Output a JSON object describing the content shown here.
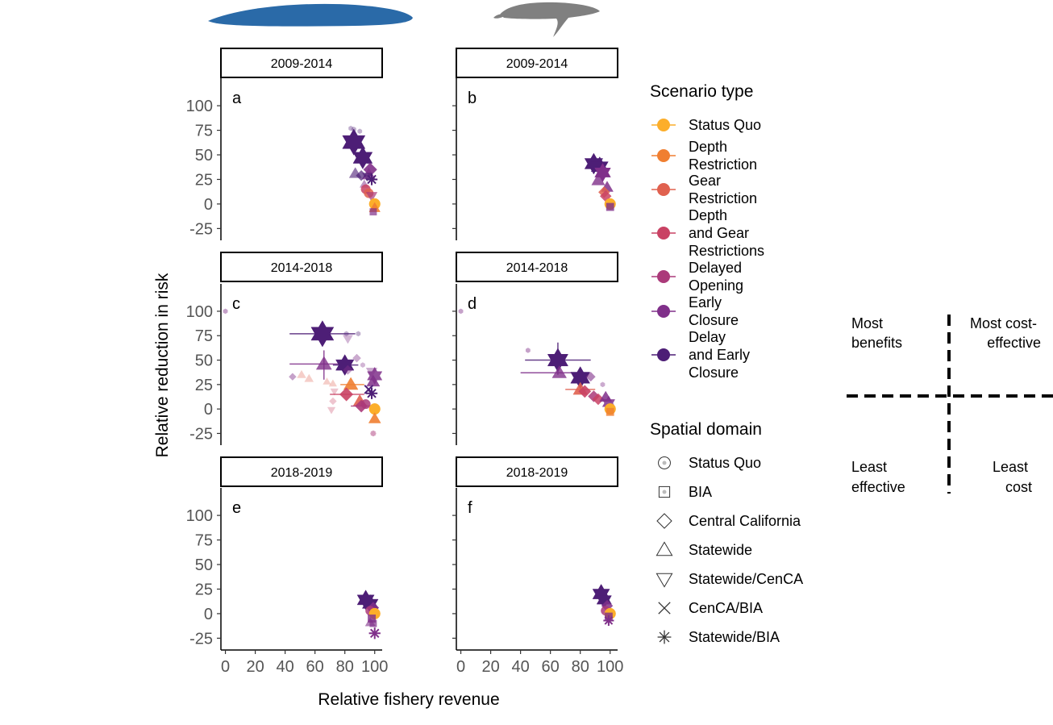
{
  "figure": {
    "ylabel": "Relative reduction in risk",
    "xlabel": "Relative fishery revenue",
    "strip_labels": [
      "2009-2014",
      "2014-2018",
      "2018-2019"
    ],
    "panel_letters": [
      "a",
      "b",
      "c",
      "d",
      "e",
      "f"
    ],
    "species_icons": [
      "blue-whale-icon",
      "humpback-whale-icon"
    ]
  },
  "legend": {
    "scenario_title": "Scenario type",
    "scenario_items": [
      {
        "lines": [
          "Status Quo"
        ],
        "color": "#fcae2a"
      },
      {
        "lines": [
          "Depth",
          "Restriction"
        ],
        "color": "#f07f31"
      },
      {
        "lines": [
          "Gear",
          "Restriction"
        ],
        "color": "#e0614f"
      },
      {
        "lines": [
          "Depth",
          "and Gear",
          "Restrictions"
        ],
        "color": "#c94264"
      },
      {
        "lines": [
          "Delayed",
          "Opening"
        ],
        "color": "#ab3a7a"
      },
      {
        "lines": [
          "Early",
          "Closure"
        ],
        "color": "#80308a"
      },
      {
        "lines": [
          "Delay",
          "and Early",
          "Closure"
        ],
        "color": "#4d1e76"
      }
    ],
    "spatial_title": "Spatial domain",
    "spatial_items": [
      {
        "label": "Status Quo",
        "shape": "circle-icon"
      },
      {
        "label": "BIA",
        "shape": "square-icon"
      },
      {
        "label": "Central California",
        "shape": "diamond-icon"
      },
      {
        "label": "Statewide",
        "shape": "triangle-up-icon"
      },
      {
        "label": "Statewide/CenCA",
        "shape": "triangle-down-icon"
      },
      {
        "label": "CenCA/BIA",
        "shape": "x-icon"
      },
      {
        "label": "Statewide/BIA",
        "shape": "asterisk-icon"
      }
    ]
  },
  "quadrant": {
    "top_left": [
      "Most",
      "benefits"
    ],
    "top_right": [
      "Most cost-",
      "effective"
    ],
    "bottom_left": [
      "Least",
      "effective"
    ],
    "bottom_right": [
      "Least",
      "cost"
    ]
  },
  "chart_data": {
    "type": "scatter",
    "x_range": [
      -3,
      105
    ],
    "y_range": [
      -37,
      128
    ],
    "x_ticks": [
      0,
      20,
      40,
      60,
      80,
      100
    ],
    "x_tick_labels": [
      "0",
      "20",
      "40",
      "60",
      "80",
      "100"
    ],
    "y_ticks": [
      -25,
      0,
      25,
      50,
      75,
      100
    ],
    "y_tick_labels": [
      "-25",
      "0",
      "25",
      "50",
      "75",
      "100"
    ],
    "panels": [
      {
        "letter": "a",
        "period": "2009-2014",
        "points": [
          [
            84,
            77,
            "hexagon",
            6,
            0.35,
            6
          ],
          [
            86,
            76,
            "hexagon",
            6,
            0.35,
            6
          ],
          [
            90,
            74,
            "hexagon",
            6,
            0.35,
            6
          ],
          [
            86,
            63,
            "star",
            6,
            1,
            20
          ],
          [
            92,
            47,
            "star",
            6,
            1,
            17
          ],
          [
            96,
            43,
            "hexagon",
            6,
            0.4,
            6
          ],
          [
            97,
            35,
            "diamond",
            5,
            0.9,
            13
          ],
          [
            96,
            30,
            "triangle-up",
            5,
            0.8,
            12
          ],
          [
            87,
            31,
            "triangle-up",
            6,
            0.6,
            11
          ],
          [
            91,
            29,
            "diamond",
            6,
            0.7,
            10
          ],
          [
            98,
            25,
            "asterisk",
            6,
            1,
            12
          ],
          [
            95,
            28,
            "triangle-down",
            6,
            0.6,
            9
          ],
          [
            93,
            20,
            "triangle-up",
            5,
            0.5,
            8
          ],
          [
            94,
            15,
            "circle",
            3,
            0.85,
            11
          ],
          [
            96,
            11,
            "circle",
            2,
            0.85,
            11
          ],
          [
            98,
            8,
            "triangle-down",
            4,
            0.7,
            10
          ],
          [
            100,
            0,
            "circle",
            0,
            1,
            13
          ],
          [
            100,
            -4,
            "triangle-up",
            1,
            0.9,
            10
          ],
          [
            99,
            -8,
            "square",
            5,
            0.7,
            9
          ]
        ]
      },
      {
        "letter": "b",
        "period": "2009-2014",
        "points": [
          [
            89,
            41,
            "star",
            6,
            1,
            16
          ],
          [
            93,
            38,
            "star",
            6,
            1,
            15
          ],
          [
            95,
            32,
            "star",
            5,
            1,
            14
          ],
          [
            92,
            24,
            "triangle-up",
            5,
            0.8,
            12
          ],
          [
            98,
            17,
            "triangle-up",
            5,
            0.85,
            11
          ],
          [
            96,
            12,
            "diamond",
            2,
            0.85,
            11
          ],
          [
            97,
            8,
            "diamond",
            3,
            0.85,
            11
          ],
          [
            100,
            0,
            "circle",
            0,
            1,
            13
          ],
          [
            100,
            -3,
            "square",
            5,
            0.8,
            10
          ]
        ]
      },
      {
        "letter": "c",
        "period": "2014-2018",
        "points": [
          [
            0,
            100,
            "hexagon",
            5,
            0.45,
            6
          ],
          [
            65,
            77,
            "star",
            6,
            1,
            20,
            [
              43,
              87
            ]
          ],
          [
            81,
            77,
            "hexagon",
            6,
            0.35,
            6
          ],
          [
            82,
            72,
            "triangle-down",
            5,
            0.35,
            9
          ],
          [
            89,
            77,
            "hexagon",
            6,
            0.35,
            6
          ],
          [
            66,
            46,
            "triangle-up",
            5,
            0.8,
            14,
            [
              43,
              77
            ],
            [
              30,
              60
            ]
          ],
          [
            80,
            45,
            "star",
            6,
            1,
            16,
            [
              72,
              89
            ]
          ],
          [
            82,
            40,
            "diamond",
            5,
            0.45,
            9
          ],
          [
            92,
            45,
            "hexagon",
            5,
            0.35,
            6
          ],
          [
            88,
            52,
            "diamond",
            5,
            0.4,
            8
          ],
          [
            98,
            38,
            "triangle-down",
            5,
            0.4,
            10
          ],
          [
            100,
            34,
            "star",
            5,
            0.85,
            13
          ],
          [
            99,
            28,
            "triangle-up",
            5,
            0.85,
            12
          ],
          [
            96,
            20,
            "x",
            6,
            1,
            10
          ],
          [
            98,
            16,
            "asterisk",
            6,
            1,
            12
          ],
          [
            84,
            25,
            "triangle-up",
            1,
            0.9,
            13,
            [
              77,
              93
            ]
          ],
          [
            81,
            15,
            "diamond",
            3,
            0.9,
            13,
            [
              70,
              93
            ]
          ],
          [
            90,
            8,
            "triangle-up",
            2,
            0.9,
            12
          ],
          [
            91,
            3,
            "diamond",
            4,
            0.9,
            12,
            [
              84,
              97
            ]
          ],
          [
            94,
            5,
            "circle",
            4,
            0.85,
            11
          ],
          [
            100,
            0,
            "circle",
            0,
            1,
            13
          ],
          [
            100,
            -10,
            "triangle-up",
            1,
            0.9,
            11
          ],
          [
            56,
            31,
            "triangle-up",
            2,
            0.3,
            8
          ],
          [
            51,
            35,
            "triangle-up",
            2,
            0.3,
            8
          ],
          [
            45,
            33,
            "diamond",
            5,
            0.45,
            7
          ],
          [
            72,
            26,
            "triangle-up",
            2,
            0.3,
            7
          ],
          [
            68,
            28,
            "triangle-up",
            2,
            0.3,
            7
          ],
          [
            73,
            18,
            "triangle-down",
            3,
            0.3,
            7
          ],
          [
            72,
            8,
            "diamond",
            3,
            0.3,
            7
          ],
          [
            71,
            -1,
            "triangle-down",
            3,
            0.3,
            7
          ],
          [
            99,
            -25,
            "asterisk",
            4,
            0.5,
            6
          ]
        ]
      },
      {
        "letter": "d",
        "period": "2014-2018",
        "points": [
          [
            0,
            100,
            "hexagon",
            5,
            0.45,
            6
          ],
          [
            45,
            60,
            "hexagon",
            5,
            0.45,
            6
          ],
          [
            65,
            50,
            "star",
            6,
            1,
            18,
            [
              43,
              87
            ],
            [
              35,
              68
            ]
          ],
          [
            66,
            37,
            "triangle-up",
            5,
            0.8,
            13,
            [
              40,
              86
            ]
          ],
          [
            80,
            32,
            "star",
            6,
            1,
            17
          ],
          [
            87,
            33,
            "diamond",
            5,
            0.6,
            9
          ],
          [
            95,
            25,
            "hexagon",
            5,
            0.4,
            6
          ],
          [
            80,
            20,
            "triangle-up",
            2,
            0.9,
            13,
            [
              70,
              90
            ]
          ],
          [
            83,
            18,
            "diamond",
            3,
            0.9,
            12
          ],
          [
            89,
            13,
            "diamond",
            4,
            0.85,
            11
          ],
          [
            92,
            10,
            "diamond",
            3,
            0.85,
            11
          ],
          [
            97,
            12,
            "triangle-up",
            5,
            0.85,
            11
          ],
          [
            99,
            6,
            "star",
            5,
            0.85,
            11
          ],
          [
            100,
            0,
            "circle",
            0,
            1,
            13
          ],
          [
            100,
            -3,
            "square",
            1,
            0.8,
            10
          ]
        ]
      },
      {
        "letter": "e",
        "period": "2018-2019",
        "points": [
          [
            94,
            14,
            "star",
            6,
            1,
            15
          ],
          [
            97,
            10,
            "star",
            6,
            1,
            14
          ],
          [
            99,
            6,
            "diamond",
            5,
            0.85,
            11
          ],
          [
            97,
            3,
            "circle",
            4,
            0.85,
            11
          ],
          [
            100,
            0,
            "circle",
            0,
            1,
            13
          ],
          [
            98,
            -5,
            "square",
            5,
            0.8,
            10
          ],
          [
            99,
            -10,
            "square",
            5,
            0.7,
            9
          ],
          [
            100,
            -20,
            "asterisk",
            5,
            1,
            12
          ],
          [
            97,
            -9,
            "triangle-up",
            5,
            0.6,
            9
          ]
        ]
      },
      {
        "letter": "f",
        "period": "2018-2019",
        "points": [
          [
            94,
            20,
            "star",
            6,
            1,
            15
          ],
          [
            96,
            14,
            "star",
            6,
            1,
            13
          ],
          [
            98,
            8,
            "diamond",
            5,
            0.85,
            11
          ],
          [
            97,
            3,
            "circle",
            4,
            0.85,
            11
          ],
          [
            100,
            0,
            "circle",
            0,
            1,
            13
          ],
          [
            99,
            -3,
            "square",
            5,
            0.8,
            10
          ],
          [
            99,
            -7,
            "asterisk",
            5,
            1,
            11
          ]
        ]
      }
    ]
  }
}
